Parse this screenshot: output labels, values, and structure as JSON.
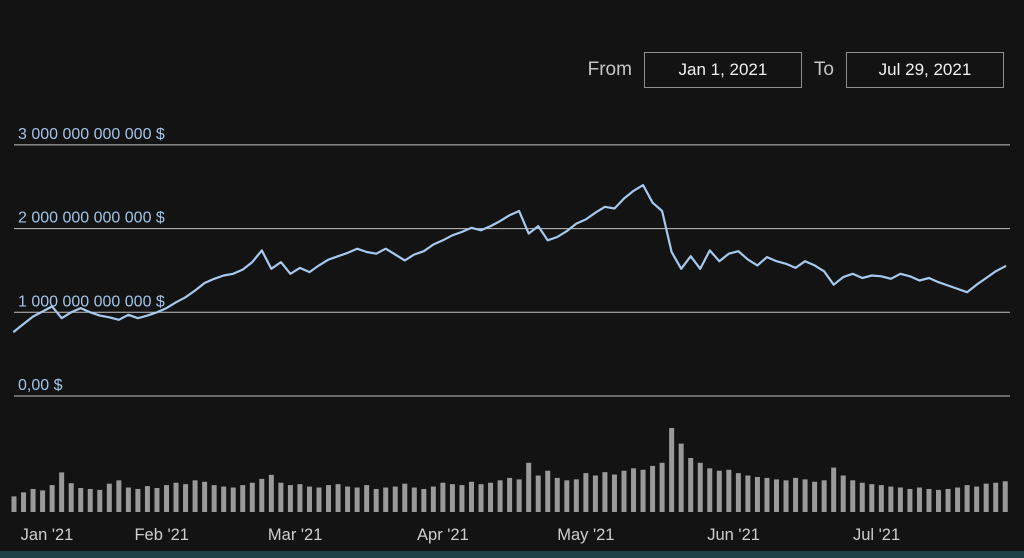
{
  "controls": {
    "from_label": "From",
    "from_value": "Jan 1, 2021",
    "to_label": "To",
    "to_value": "Jul 29, 2021"
  },
  "colors": {
    "background": "#131313",
    "line": "#a6c9ee",
    "grid": "#d7d7d7",
    "axis_label": "#a2c4e8",
    "month_label": "#cfcfcf",
    "volume_bar": "#9a9a9a",
    "scrollbar": "#1d4146",
    "control_label": "#c6c6c6",
    "control_border": "#8f8f8f",
    "control_text": "#f2f2f2"
  },
  "chart_data": {
    "type": "line",
    "title": "",
    "x_axis": {
      "start_date": "Jan 1, 2021",
      "end_date": "Jul 29, 2021",
      "total_days": 209,
      "ticks": [
        {
          "label": "Jan '21",
          "day": 0
        },
        {
          "label": "Feb '21",
          "day": 31
        },
        {
          "label": "Mar '21",
          "day": 59
        },
        {
          "label": "Apr '21",
          "day": 90
        },
        {
          "label": "May '21",
          "day": 120
        },
        {
          "label": "Jun '21",
          "day": 151
        },
        {
          "label": "Jul '21",
          "day": 181
        }
      ]
    },
    "y_axis": {
      "unit": "USD",
      "ylim_trillions": [
        0,
        3.3
      ],
      "grid": true,
      "ticks": [
        {
          "label": "3 000 000 000 000 $",
          "value_trillions": 3
        },
        {
          "label": "2 000 000 000 000 $",
          "value_trillions": 2
        },
        {
          "label": "1 000 000 000 000 $",
          "value_trillions": 1
        },
        {
          "label": "0,00 $",
          "value_trillions": 0
        }
      ]
    },
    "legend": "none",
    "x_days": [
      0,
      2,
      4,
      6,
      8,
      10,
      12,
      14,
      16,
      18,
      20,
      22,
      24,
      26,
      28,
      30,
      32,
      34,
      36,
      38,
      40,
      42,
      44,
      46,
      48,
      50,
      52,
      54,
      56,
      58,
      60,
      62,
      64,
      66,
      68,
      70,
      72,
      74,
      76,
      78,
      80,
      82,
      84,
      86,
      88,
      90,
      92,
      94,
      96,
      98,
      100,
      102,
      104,
      106,
      108,
      110,
      112,
      114,
      116,
      118,
      120,
      122,
      124,
      126,
      128,
      130,
      132,
      134,
      136,
      138,
      140,
      142,
      144,
      146,
      148,
      150,
      152,
      154,
      156,
      158,
      160,
      162,
      164,
      166,
      168,
      170,
      172,
      174,
      176,
      178,
      180,
      182,
      184,
      186,
      188,
      190,
      192,
      194,
      196,
      198,
      200,
      202,
      204,
      206,
      208
    ],
    "series": [
      {
        "name": "market_cap",
        "type": "line",
        "unit": "USD trillions (estimated from gridlines)",
        "values_trillions": [
          0.77,
          0.86,
          0.95,
          1.01,
          1.07,
          0.93,
          1.0,
          1.05,
          1.0,
          0.96,
          0.94,
          0.91,
          0.97,
          0.93,
          0.96,
          1.0,
          1.05,
          1.12,
          1.18,
          1.26,
          1.35,
          1.4,
          1.44,
          1.46,
          1.51,
          1.6,
          1.74,
          1.52,
          1.6,
          1.46,
          1.53,
          1.48,
          1.56,
          1.63,
          1.67,
          1.71,
          1.76,
          1.72,
          1.7,
          1.76,
          1.69,
          1.62,
          1.69,
          1.73,
          1.81,
          1.86,
          1.92,
          1.96,
          2.01,
          1.98,
          2.03,
          2.09,
          2.16,
          2.21,
          1.94,
          2.03,
          1.86,
          1.9,
          1.97,
          2.06,
          2.11,
          2.19,
          2.26,
          2.24,
          2.36,
          2.45,
          2.52,
          2.31,
          2.21,
          1.72,
          1.52,
          1.67,
          1.52,
          1.74,
          1.61,
          1.7,
          1.73,
          1.63,
          1.56,
          1.66,
          1.61,
          1.58,
          1.53,
          1.61,
          1.56,
          1.49,
          1.33,
          1.42,
          1.46,
          1.41,
          1.44,
          1.43,
          1.4,
          1.46,
          1.43,
          1.38,
          1.41,
          1.36,
          1.32,
          1.28,
          1.24,
          1.33,
          1.41,
          1.49,
          1.55
        ]
      },
      {
        "name": "volume",
        "type": "bar",
        "unit": "USD billions (no labeled axis; estimated from bar heights)",
        "values_billions": [
          65,
          82,
          96,
          90,
          112,
          165,
          120,
          100,
          96,
          92,
          118,
          132,
          102,
          96,
          108,
          100,
          112,
          122,
          116,
          132,
          126,
          112,
          106,
          102,
          112,
          122,
          138,
          155,
          122,
          112,
          116,
          106,
          102,
          112,
          116,
          106,
          102,
          112,
          96,
          102,
          106,
          118,
          102,
          96,
          106,
          122,
          116,
          112,
          126,
          116,
          122,
          132,
          142,
          136,
          205,
          152,
          172,
          142,
          132,
          136,
          162,
          152,
          166,
          156,
          172,
          182,
          176,
          192,
          205,
          350,
          285,
          225,
          205,
          182,
          172,
          176,
          162,
          152,
          146,
          142,
          136,
          132,
          142,
          136,
          126,
          132,
          185,
          152,
          132,
          122,
          116,
          112,
          106,
          102,
          96,
          102,
          96,
          92,
          96,
          102,
          112,
          106,
          118,
          122,
          128
        ]
      }
    ]
  }
}
